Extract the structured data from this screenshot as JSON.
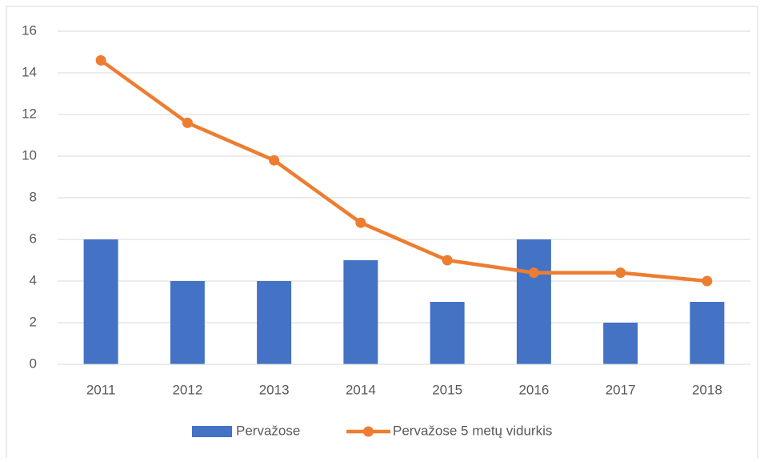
{
  "chart_data": {
    "type": "combo",
    "categories": [
      "2011",
      "2012",
      "2013",
      "2014",
      "2015",
      "2016",
      "2017",
      "2018"
    ],
    "series": [
      {
        "name": "Pervažose",
        "type": "bar",
        "color": "#4472c4",
        "values": [
          6,
          4,
          4,
          5,
          3,
          6,
          2,
          3
        ]
      },
      {
        "name": "Pervažose 5 metų vidurkis",
        "type": "line",
        "color": "#ed7d31",
        "values": [
          14.6,
          11.6,
          9.8,
          6.8,
          5.0,
          4.4,
          4.4,
          4.0
        ]
      }
    ],
    "ylim": [
      0,
      16
    ],
    "yticks": [
      0,
      2,
      4,
      6,
      8,
      10,
      12,
      14,
      16
    ],
    "grid": true,
    "legend": "bottom"
  }
}
